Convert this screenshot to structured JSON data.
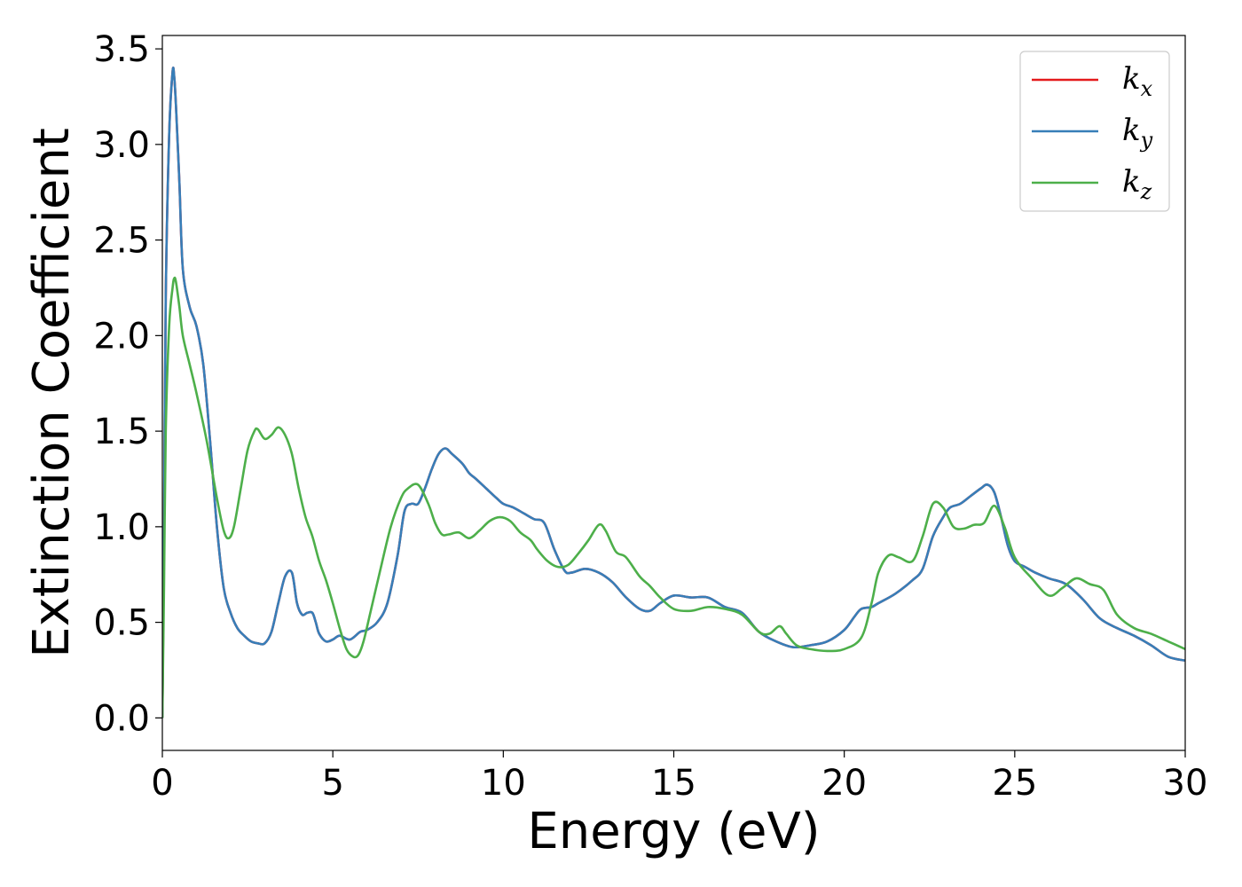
{
  "chart_data": {
    "type": "line",
    "xlabel": "Energy (eV)",
    "ylabel": "Extinction Coefficient",
    "xlim": [
      0,
      30
    ],
    "ylim": [
      -0.17,
      3.57
    ],
    "xticks": [
      0,
      5,
      10,
      15,
      20,
      25,
      30
    ],
    "yticks": [
      0.0,
      0.5,
      1.0,
      1.5,
      2.0,
      2.5,
      3.0,
      3.5
    ],
    "grid": false,
    "legend": {
      "placement": "top-right"
    },
    "series": [
      {
        "name": "k_x",
        "label_main": "k",
        "label_sub": "x",
        "color": "#e41a1c",
        "x": [
          0.0,
          0.05,
          0.1,
          0.2,
          0.3,
          0.35,
          0.4,
          0.5,
          0.6,
          0.8,
          1.0,
          1.2,
          1.4,
          1.6,
          1.8,
          2.0,
          2.2,
          2.4,
          2.6,
          2.8,
          3.0,
          3.2,
          3.4,
          3.6,
          3.8,
          3.95,
          4.1,
          4.25,
          4.4,
          4.5,
          4.6,
          4.8,
          5.0,
          5.2,
          5.5,
          5.8,
          6.0,
          6.3,
          6.6,
          6.9,
          7.1,
          7.3,
          7.5,
          7.7,
          7.9,
          8.1,
          8.3,
          8.5,
          8.8,
          9.0,
          9.2,
          9.5,
          9.8,
          10.0,
          10.3,
          10.6,
          10.9,
          11.2,
          11.5,
          11.8,
          12.0,
          12.4,
          12.8,
          13.2,
          13.6,
          14.0,
          14.3,
          14.6,
          15.0,
          15.5,
          16.0,
          16.5,
          17.0,
          17.5,
          18.0,
          18.5,
          19.0,
          19.5,
          20.0,
          20.3,
          20.5,
          20.8,
          21.0,
          21.5,
          22.0,
          22.3,
          22.6,
          22.9,
          23.1,
          23.4,
          23.7,
          24.0,
          24.2,
          24.4,
          24.6,
          24.8,
          25.0,
          25.3,
          25.6,
          26.0,
          26.5,
          27.0,
          27.5,
          28.0,
          28.5,
          29.0,
          29.5,
          30.0
        ],
        "y": [
          0.0,
          1.0,
          2.2,
          3.05,
          3.38,
          3.35,
          3.2,
          2.8,
          2.35,
          2.15,
          2.05,
          1.85,
          1.45,
          1.0,
          0.68,
          0.55,
          0.47,
          0.43,
          0.4,
          0.39,
          0.39,
          0.45,
          0.6,
          0.74,
          0.76,
          0.6,
          0.54,
          0.55,
          0.55,
          0.5,
          0.44,
          0.4,
          0.41,
          0.43,
          0.41,
          0.45,
          0.46,
          0.5,
          0.6,
          0.85,
          1.08,
          1.12,
          1.12,
          1.2,
          1.3,
          1.38,
          1.41,
          1.38,
          1.33,
          1.28,
          1.25,
          1.2,
          1.15,
          1.12,
          1.1,
          1.07,
          1.04,
          1.02,
          0.88,
          0.77,
          0.76,
          0.78,
          0.76,
          0.71,
          0.63,
          0.57,
          0.56,
          0.6,
          0.64,
          0.63,
          0.63,
          0.58,
          0.55,
          0.45,
          0.4,
          0.37,
          0.38,
          0.4,
          0.46,
          0.53,
          0.57,
          0.58,
          0.6,
          0.65,
          0.72,
          0.78,
          0.95,
          1.05,
          1.1,
          1.12,
          1.16,
          1.2,
          1.22,
          1.18,
          1.05,
          0.9,
          0.82,
          0.79,
          0.76,
          0.73,
          0.7,
          0.62,
          0.52,
          0.47,
          0.43,
          0.38,
          0.32,
          0.3
        ]
      },
      {
        "name": "k_y",
        "label_main": "k",
        "label_sub": "y",
        "color": "#377eb8",
        "x": [
          0.0,
          0.05,
          0.1,
          0.2,
          0.3,
          0.35,
          0.4,
          0.5,
          0.6,
          0.8,
          1.0,
          1.2,
          1.4,
          1.6,
          1.8,
          2.0,
          2.2,
          2.4,
          2.6,
          2.8,
          3.0,
          3.2,
          3.4,
          3.6,
          3.8,
          3.95,
          4.1,
          4.25,
          4.4,
          4.5,
          4.6,
          4.8,
          5.0,
          5.2,
          5.5,
          5.8,
          6.0,
          6.3,
          6.6,
          6.9,
          7.1,
          7.3,
          7.5,
          7.7,
          7.9,
          8.1,
          8.3,
          8.5,
          8.8,
          9.0,
          9.2,
          9.5,
          9.8,
          10.0,
          10.3,
          10.6,
          10.9,
          11.2,
          11.5,
          11.8,
          12.0,
          12.4,
          12.8,
          13.2,
          13.6,
          14.0,
          14.3,
          14.6,
          15.0,
          15.5,
          16.0,
          16.5,
          17.0,
          17.5,
          18.0,
          18.5,
          19.0,
          19.5,
          20.0,
          20.3,
          20.5,
          20.8,
          21.0,
          21.5,
          22.0,
          22.3,
          22.6,
          22.9,
          23.1,
          23.4,
          23.7,
          24.0,
          24.2,
          24.4,
          24.6,
          24.8,
          25.0,
          25.3,
          25.6,
          26.0,
          26.5,
          27.0,
          27.5,
          28.0,
          28.5,
          29.0,
          29.5,
          30.0
        ],
        "y": [
          0.0,
          1.0,
          2.2,
          3.05,
          3.38,
          3.35,
          3.2,
          2.8,
          2.35,
          2.15,
          2.05,
          1.85,
          1.45,
          1.0,
          0.68,
          0.55,
          0.47,
          0.43,
          0.4,
          0.39,
          0.39,
          0.45,
          0.6,
          0.74,
          0.76,
          0.6,
          0.54,
          0.55,
          0.55,
          0.5,
          0.44,
          0.4,
          0.41,
          0.43,
          0.41,
          0.45,
          0.46,
          0.5,
          0.6,
          0.85,
          1.08,
          1.12,
          1.12,
          1.2,
          1.3,
          1.38,
          1.41,
          1.38,
          1.33,
          1.28,
          1.25,
          1.2,
          1.15,
          1.12,
          1.1,
          1.07,
          1.04,
          1.02,
          0.88,
          0.77,
          0.76,
          0.78,
          0.76,
          0.71,
          0.63,
          0.57,
          0.56,
          0.6,
          0.64,
          0.63,
          0.63,
          0.58,
          0.55,
          0.45,
          0.4,
          0.37,
          0.38,
          0.4,
          0.46,
          0.53,
          0.57,
          0.58,
          0.6,
          0.65,
          0.72,
          0.78,
          0.95,
          1.05,
          1.1,
          1.12,
          1.16,
          1.2,
          1.22,
          1.18,
          1.05,
          0.9,
          0.82,
          0.79,
          0.76,
          0.73,
          0.7,
          0.62,
          0.52,
          0.47,
          0.43,
          0.38,
          0.32,
          0.3
        ]
      },
      {
        "name": "k_z",
        "label_main": "k",
        "label_sub": "z",
        "color": "#4daf4a",
        "x": [
          0.0,
          0.05,
          0.1,
          0.2,
          0.3,
          0.35,
          0.4,
          0.5,
          0.6,
          0.8,
          1.0,
          1.3,
          1.6,
          1.8,
          1.95,
          2.1,
          2.3,
          2.5,
          2.7,
          2.8,
          3.0,
          3.2,
          3.4,
          3.6,
          3.8,
          4.0,
          4.2,
          4.4,
          4.6,
          4.8,
          5.0,
          5.2,
          5.4,
          5.6,
          5.75,
          5.9,
          6.1,
          6.4,
          6.7,
          7.0,
          7.2,
          7.5,
          7.8,
          8.0,
          8.2,
          8.4,
          8.7,
          9.0,
          9.3,
          9.6,
          9.9,
          10.2,
          10.5,
          10.8,
          11.0,
          11.3,
          11.6,
          11.9,
          12.2,
          12.5,
          12.8,
          13.0,
          13.3,
          13.6,
          14.0,
          14.3,
          14.6,
          15.0,
          15.5,
          16.0,
          16.5,
          17.0,
          17.5,
          17.8,
          18.1,
          18.3,
          18.6,
          19.0,
          19.5,
          20.0,
          20.5,
          20.8,
          21.0,
          21.3,
          21.6,
          22.0,
          22.3,
          22.6,
          22.9,
          23.2,
          23.5,
          23.8,
          24.1,
          24.4,
          24.7,
          25.0,
          25.5,
          26.0,
          26.4,
          26.8,
          27.2,
          27.6,
          28.0,
          28.5,
          29.0,
          29.5,
          30.0
        ],
        "y": [
          0.0,
          0.7,
          1.5,
          2.05,
          2.25,
          2.3,
          2.28,
          2.15,
          2.0,
          1.85,
          1.7,
          1.45,
          1.15,
          0.98,
          0.94,
          1.0,
          1.2,
          1.4,
          1.5,
          1.51,
          1.46,
          1.48,
          1.52,
          1.48,
          1.38,
          1.2,
          1.05,
          0.95,
          0.82,
          0.72,
          0.6,
          0.47,
          0.36,
          0.32,
          0.33,
          0.4,
          0.55,
          0.78,
          1.0,
          1.15,
          1.2,
          1.22,
          1.12,
          1.02,
          0.96,
          0.96,
          0.97,
          0.94,
          0.98,
          1.03,
          1.05,
          1.03,
          0.97,
          0.93,
          0.88,
          0.82,
          0.79,
          0.8,
          0.86,
          0.93,
          1.01,
          0.98,
          0.87,
          0.84,
          0.74,
          0.69,
          0.63,
          0.57,
          0.56,
          0.58,
          0.57,
          0.54,
          0.45,
          0.44,
          0.48,
          0.44,
          0.38,
          0.36,
          0.35,
          0.36,
          0.42,
          0.6,
          0.76,
          0.85,
          0.84,
          0.82,
          0.95,
          1.12,
          1.1,
          1.0,
          0.99,
          1.01,
          1.02,
          1.11,
          1.0,
          0.84,
          0.73,
          0.64,
          0.68,
          0.73,
          0.7,
          0.67,
          0.54,
          0.47,
          0.44,
          0.4,
          0.36
        ]
      }
    ]
  }
}
